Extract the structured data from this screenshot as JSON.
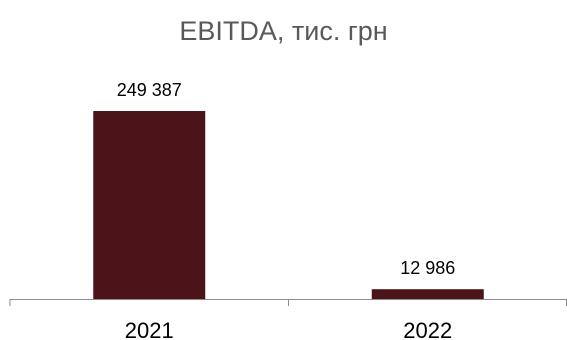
{
  "chart_data": {
    "type": "bar",
    "title": "EBITDA, тис. грн",
    "xlabel": "",
    "ylabel": "",
    "categories": [
      "2021",
      "2022"
    ],
    "values": [
      249387,
      12986
    ],
    "data_labels": [
      "249 387",
      "12 986"
    ],
    "ylim": [
      0,
      249387
    ],
    "grid": false,
    "legend": "none",
    "bar_color": "#4a1419",
    "axis_color": "#8c8c8c"
  }
}
